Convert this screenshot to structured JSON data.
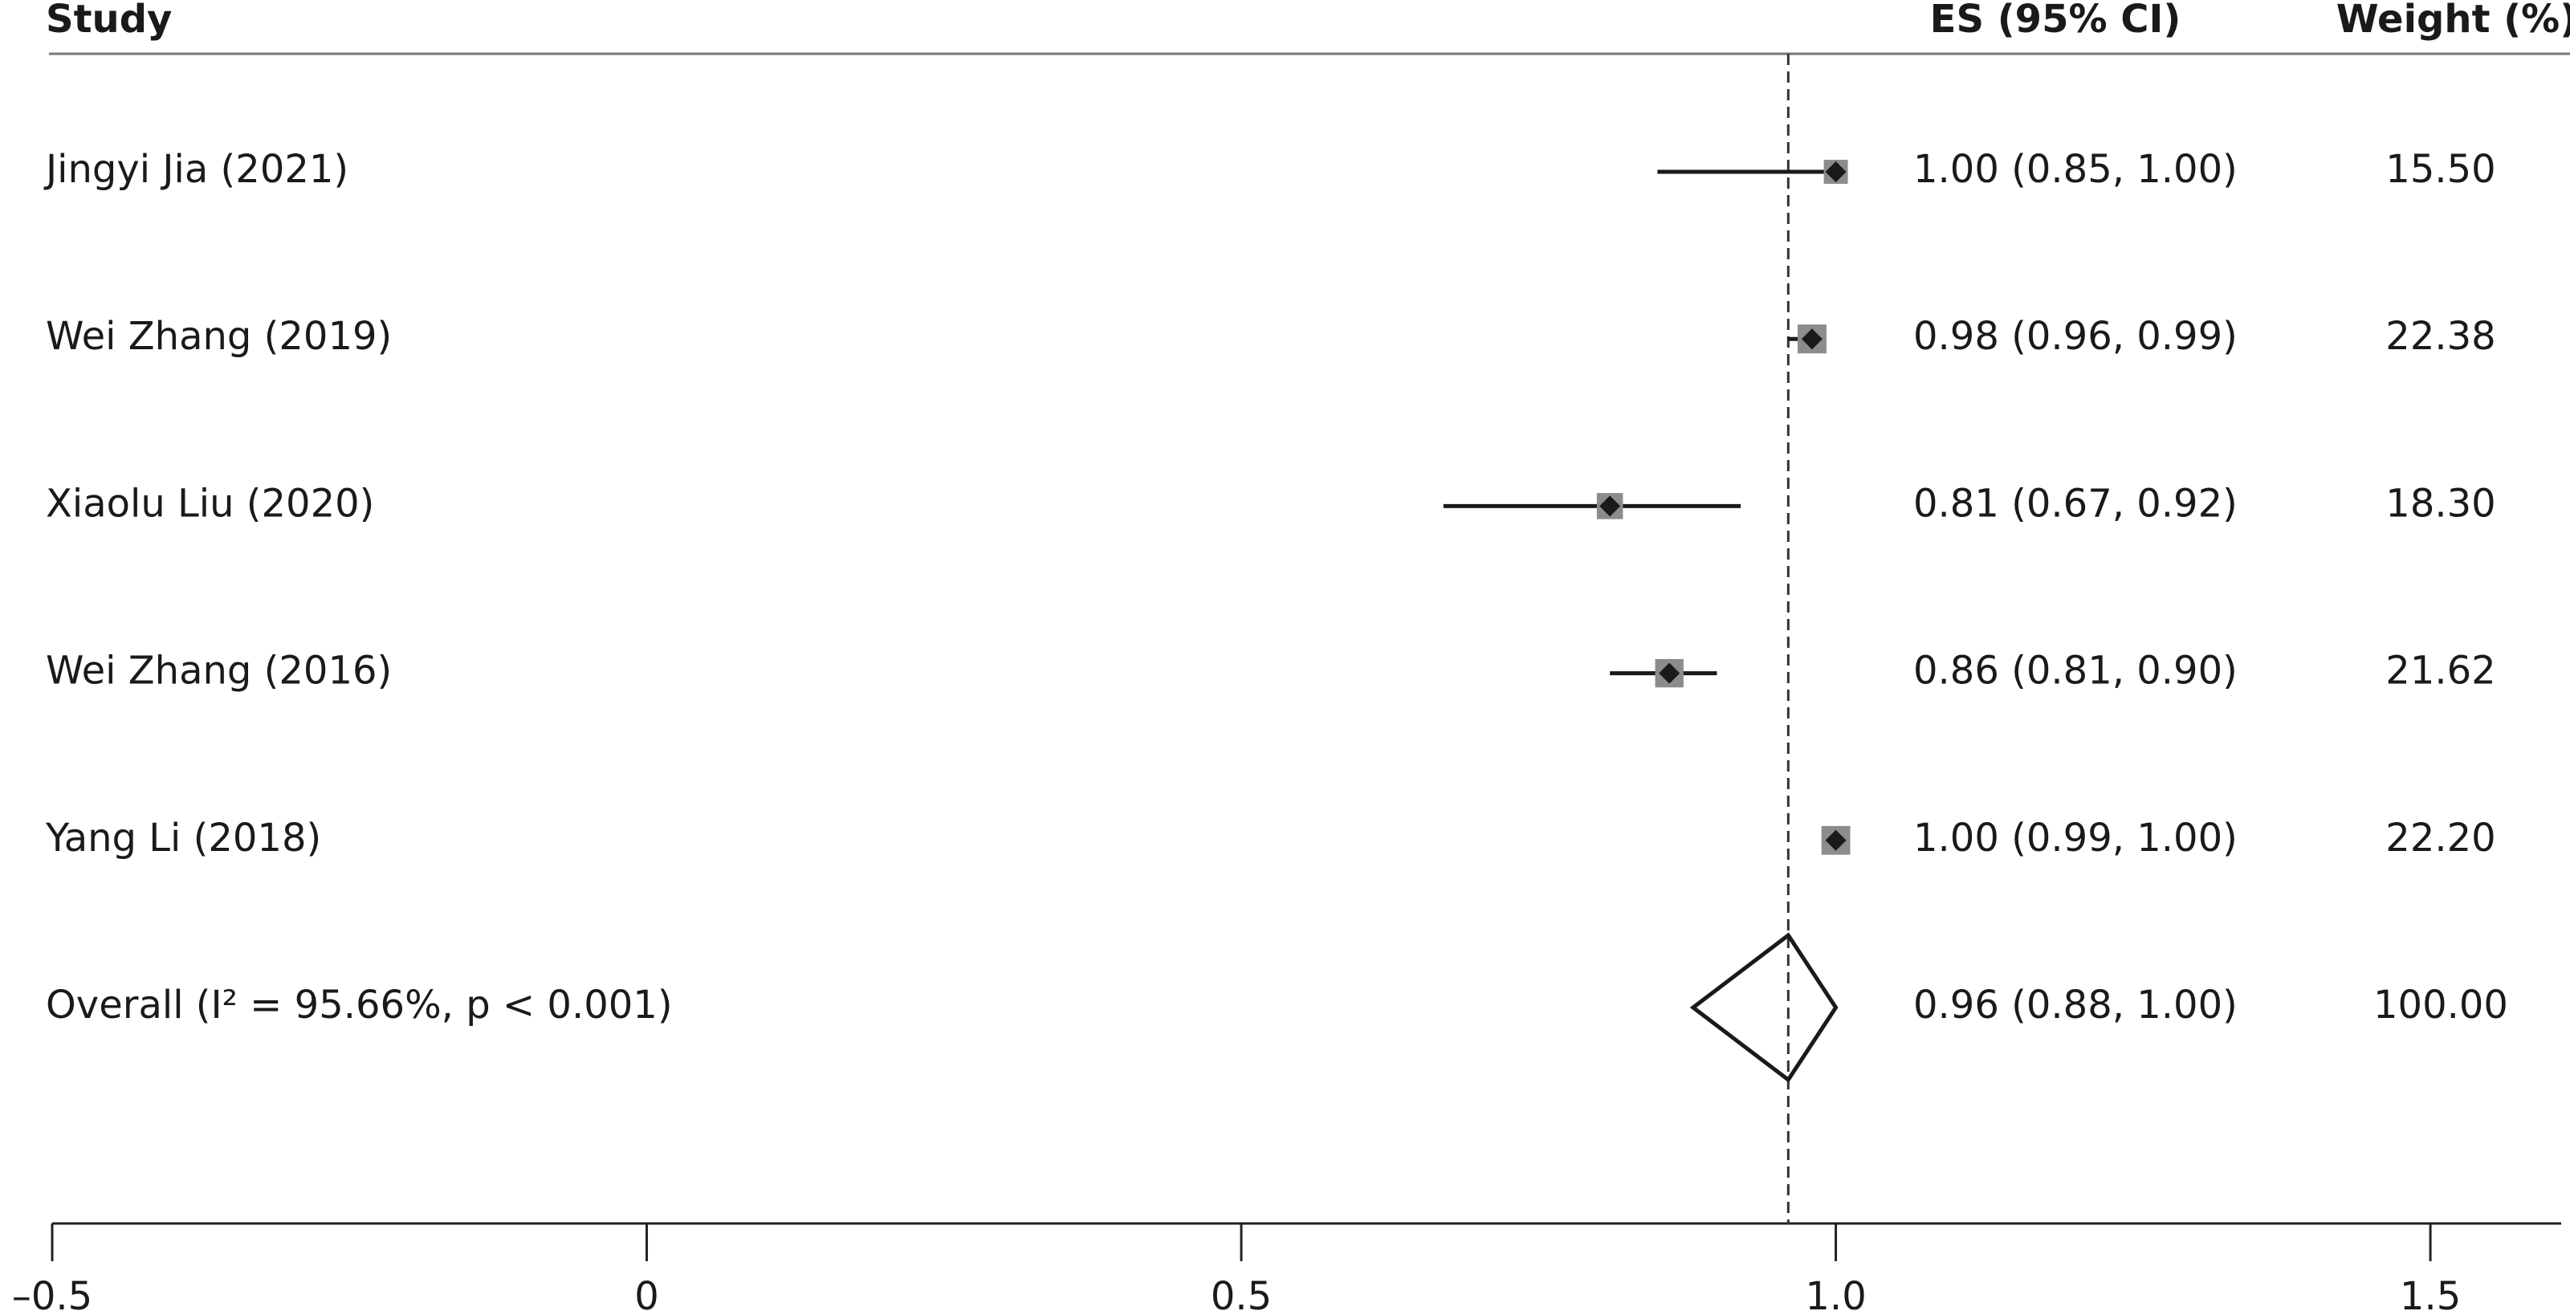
{
  "chart_data": {
    "type": "forest",
    "headers": {
      "study": "Study",
      "es": "ES (95% CI)",
      "weight": "Weight (%)"
    },
    "categories": [
      "Jingyi Jia (2021)",
      "Wei Zhang (2019)",
      "Xiaolu Liu (2020)",
      "Wei Zhang (2016)",
      "Yang Li (2018)"
    ],
    "values": [
      1.0,
      0.98,
      0.81,
      0.86,
      1.0
    ],
    "ci_low": [
      0.85,
      0.96,
      0.67,
      0.81,
      0.99
    ],
    "ci_high": [
      1.0,
      0.99,
      0.92,
      0.9,
      1.0
    ],
    "value_labels": [
      "1.00 (0.85, 1.00)",
      "0.98 (0.96, 0.99)",
      "0.81 (0.67, 0.92)",
      "0.86 (0.81, 0.90)",
      "1.00 (0.99, 1.00)"
    ],
    "weights": [
      15.5,
      22.38,
      18.3,
      21.62,
      22.2
    ],
    "weight_labels": [
      "15.50",
      "22.38",
      "18.30",
      "21.62",
      "22.20"
    ],
    "overall": {
      "label": "Overall (I² = 95.66%, p < 0.001)",
      "value": 0.96,
      "ci_low": 0.88,
      "ci_high": 1.0,
      "value_label": "0.96 (0.88, 1.00)",
      "weight": 100,
      "weight_label": "100.00"
    },
    "marker_color": "#8c8c8c",
    "xlim": [
      -0.5,
      1.61
    ],
    "xticks": [
      {
        "value": -0.5,
        "label": "–0.5"
      },
      0,
      {
        "value": 0.5,
        "label": "0.5"
      },
      {
        "value": 1,
        "label": "1.0"
      },
      1.5
    ]
  }
}
